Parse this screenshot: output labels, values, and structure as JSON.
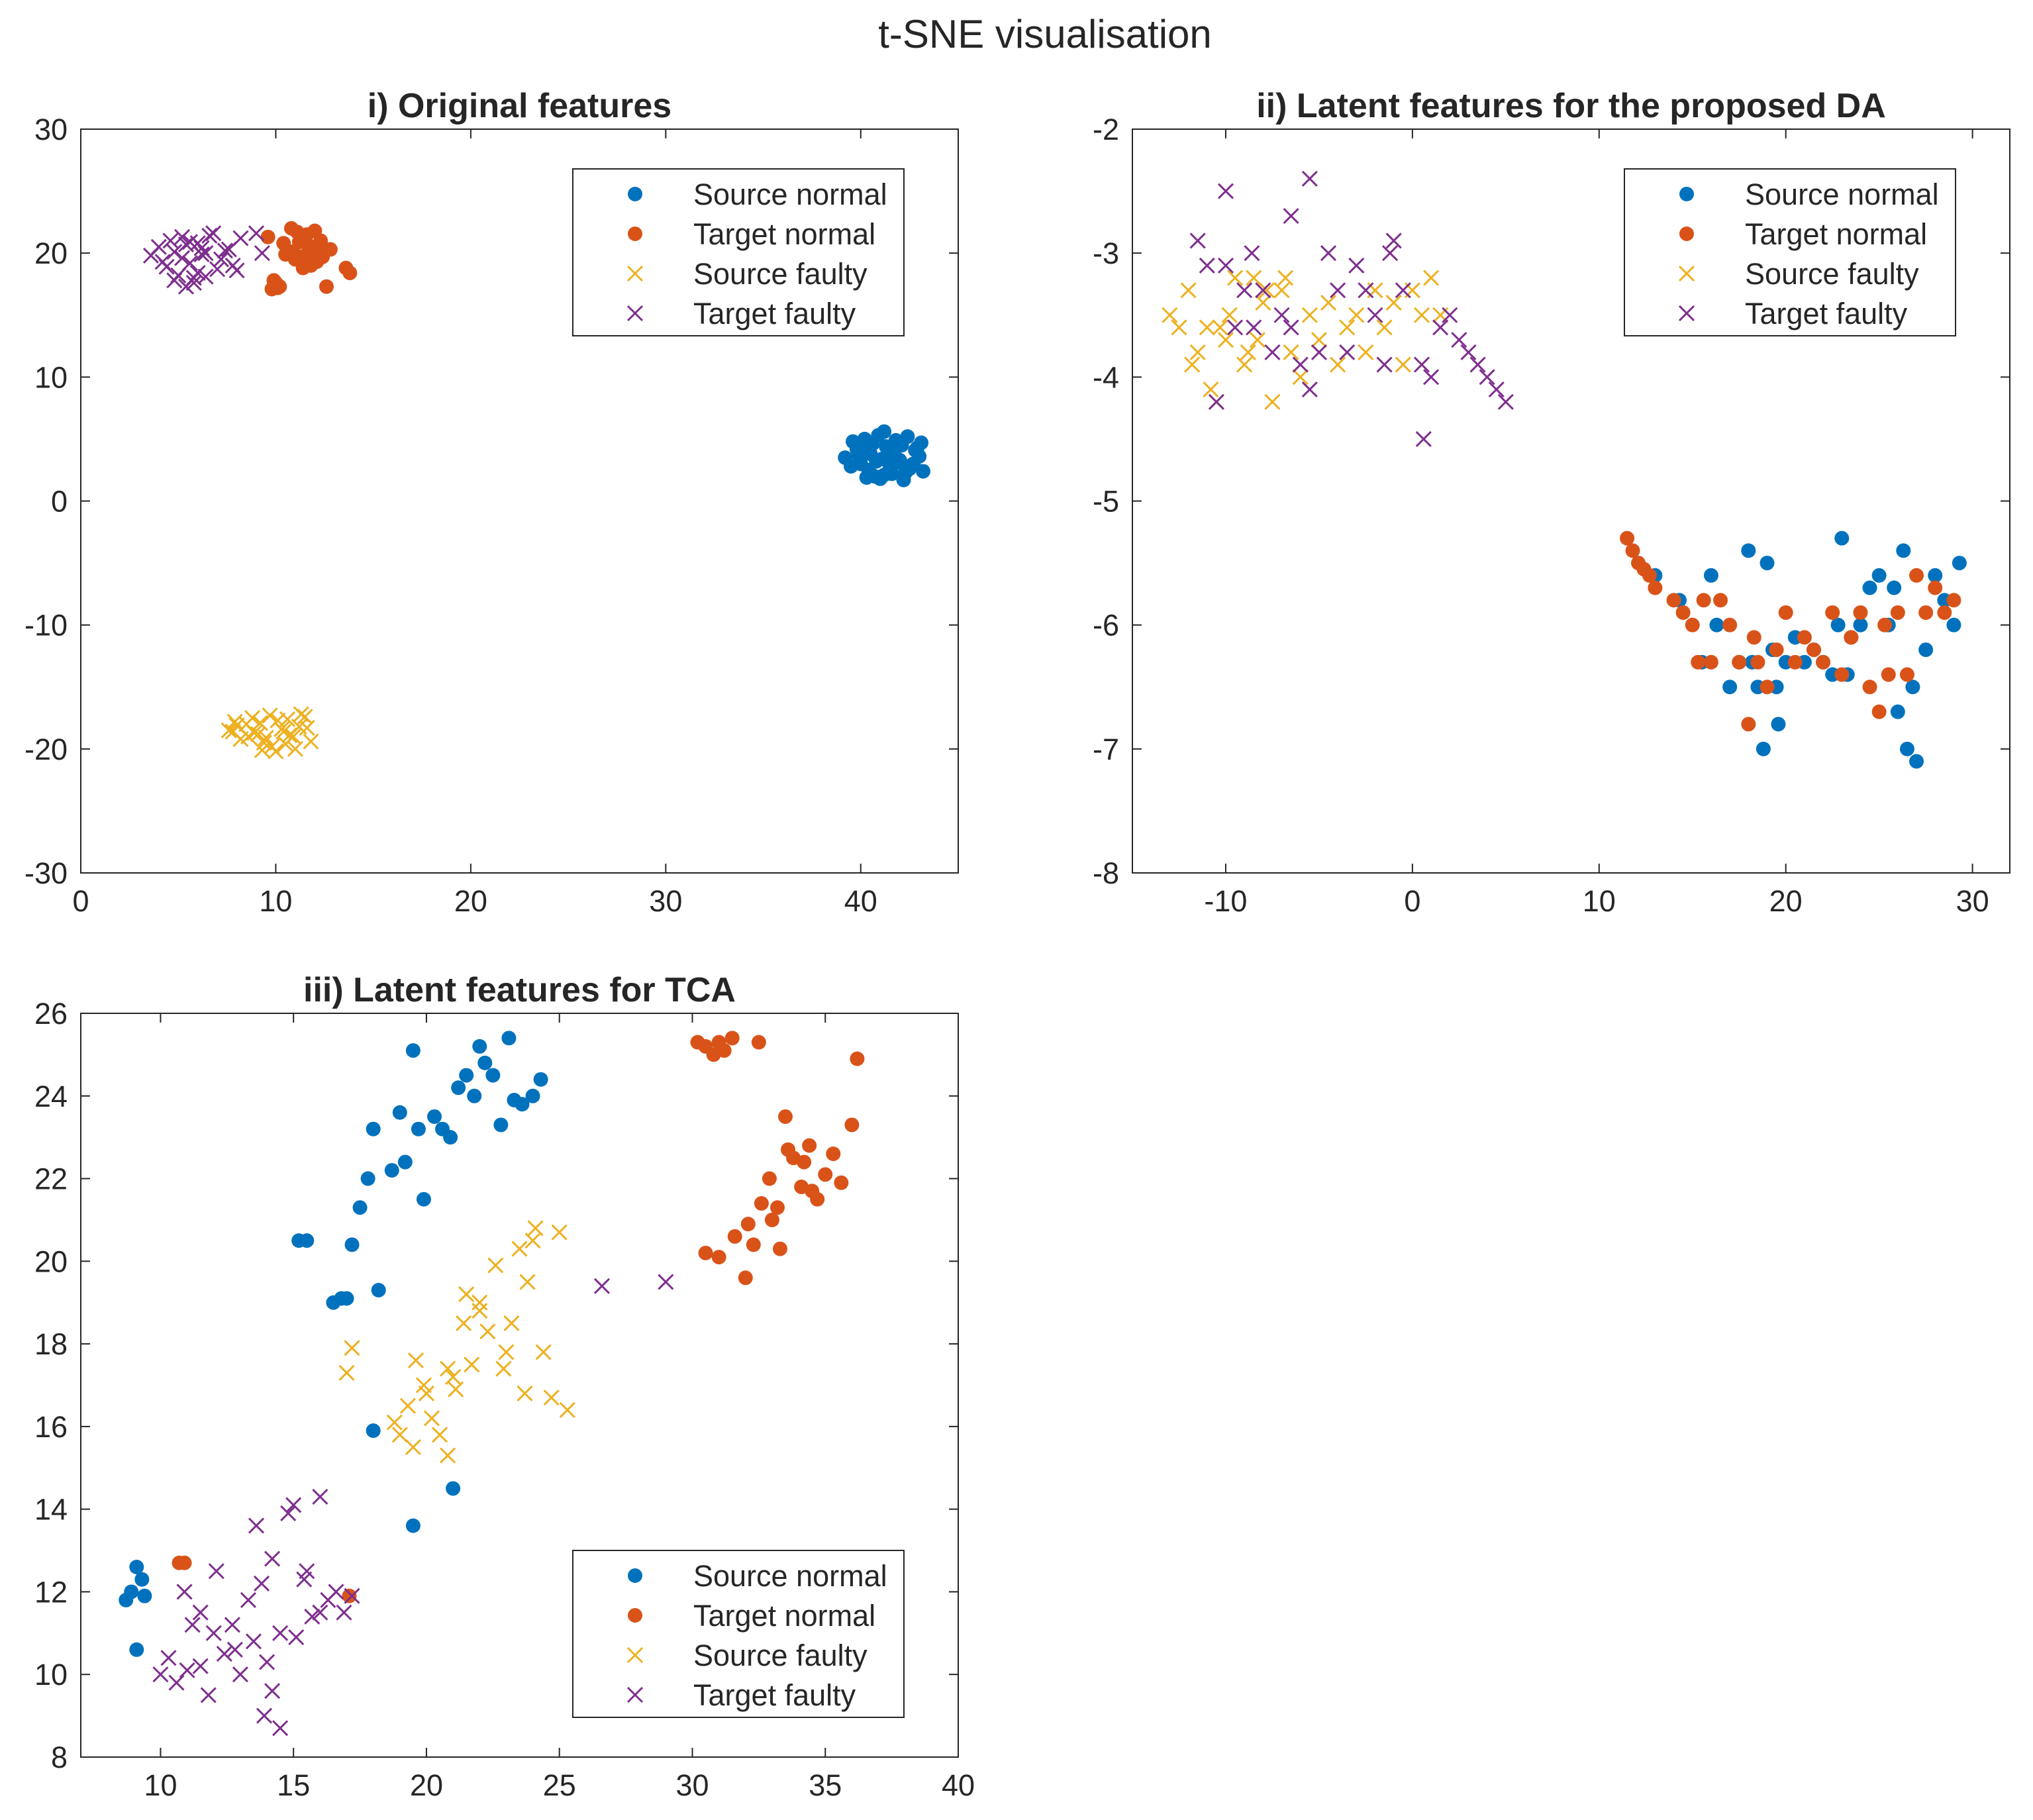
{
  "figure_title": "t-SNE visualisation",
  "colors": {
    "source_normal": "#0072BD",
    "target_normal": "#D95319",
    "source_faulty": "#EDB120",
    "target_faulty": "#7E2F8E",
    "axis": "#262626"
  },
  "chart_data": [
    {
      "type": "scatter",
      "title": "i) Original features",
      "xlabel": "",
      "ylabel": "",
      "xlim": [
        0,
        45
      ],
      "ylim": [
        -30,
        30
      ],
      "xticks": [
        0,
        10,
        20,
        30,
        40
      ],
      "yticks": [
        -30,
        -20,
        -10,
        0,
        10,
        20,
        30
      ],
      "legend_position": "top-right",
      "series": [
        {
          "name": "Source normal",
          "marker": "dot",
          "color": "#0072BD",
          "x": [
            39.2,
            39.5,
            39.8,
            40.0,
            40.2,
            40.4,
            40.6,
            40.8,
            41.0,
            41.2,
            41.4,
            41.6,
            41.8,
            42.0,
            42.2,
            42.4,
            42.6,
            42.8,
            43.0,
            43.2,
            39.6,
            40.1,
            40.7,
            41.3,
            41.9,
            42.5,
            43.1,
            40.3,
            41.1,
            41.7,
            42.3,
            40.9,
            41.5,
            42.1,
            39.9,
            42.7,
            41.2,
            40.5,
            41.8,
            42.9
          ],
          "y": [
            3.5,
            2.8,
            4.2,
            3.0,
            5.0,
            2.5,
            4.6,
            3.2,
            1.8,
            5.6,
            3.8,
            2.2,
            4.9,
            3.3,
            1.7,
            5.2,
            2.9,
            4.1,
            3.6,
            2.4,
            4.8,
            3.9,
            2.0,
            4.4,
            3.1,
            2.6,
            4.7,
            1.9,
            3.4,
            4.0,
            2.3,
            5.3,
            2.7,
            4.5,
            3.7,
            3.0,
            2.1,
            3.8,
            3.5,
            4.3
          ]
        },
        {
          "name": "Target normal",
          "marker": "dot",
          "color": "#D95319",
          "x": [
            9.6,
            9.8,
            10.0,
            10.2,
            10.4,
            10.6,
            10.8,
            11.0,
            11.2,
            11.4,
            11.6,
            11.8,
            12.0,
            12.2,
            12.4,
            12.6,
            10.9,
            11.3,
            11.7,
            12.1,
            10.5,
            11.1,
            11.5,
            11.9,
            12.3,
            9.9,
            10.1,
            13.6,
            13.8,
            12.8
          ],
          "y": [
            21.3,
            17.1,
            17.6,
            17.3,
            20.8,
            20.2,
            22.0,
            19.5,
            20.9,
            18.8,
            21.5,
            19.0,
            21.8,
            20.4,
            19.7,
            17.3,
            20.1,
            21.2,
            20.6,
            19.3,
            19.9,
            21.7,
            19.8,
            20.3,
            21.0,
            17.8,
            17.2,
            18.8,
            18.4,
            20.3
          ]
        },
        {
          "name": "Source faulty",
          "marker": "x",
          "color": "#EDB120",
          "x": [
            7.6,
            7.9,
            8.2,
            8.5,
            8.8,
            9.1,
            9.4,
            9.7,
            10.0,
            10.3,
            10.6,
            10.9,
            11.2,
            11.5,
            11.8,
            8.0,
            8.6,
            9.2,
            9.8,
            10.4,
            11.0,
            11.6,
            9.5,
            10.1,
            10.7,
            8.9,
            9.3,
            10.5,
            11.3,
            7.8
          ],
          "y": [
            -18.5,
            -17.8,
            -19.2,
            -18.0,
            -17.5,
            -18.8,
            -19.5,
            -17.3,
            -20.2,
            -18.4,
            -17.6,
            -19.0,
            -18.2,
            -17.4,
            -19.4,
            -18.1,
            -19.0,
            -17.9,
            -19.8,
            -18.6,
            -20.0,
            -18.3,
            -19.1,
            -17.7,
            -18.9,
            -18.7,
            -20.1,
            -19.6,
            -17.2,
            -18.6
          ]
        },
        {
          "name": "Target faulty",
          "marker": "x",
          "color": "#7E2F8E",
          "x": [
            3.6,
            4.0,
            4.4,
            4.8,
            5.2,
            5.6,
            6.0,
            6.4,
            6.8,
            7.2,
            7.6,
            8.0,
            4.2,
            4.6,
            5.0,
            5.4,
            5.8,
            6.2,
            6.6,
            7.0,
            7.4,
            7.8,
            8.2,
            4.8,
            5.2,
            5.6,
            6.0,
            6.4,
            9.0,
            9.3,
            5.4,
            5.8,
            6.2
          ],
          "y": [
            19.8,
            20.5,
            18.9,
            20.1,
            21.3,
            19.2,
            20.8,
            18.1,
            21.6,
            19.5,
            20.3,
            18.6,
            19.3,
            21.0,
            18.2,
            20.7,
            17.6,
            19.9,
            21.4,
            18.7,
            20.2,
            19.0,
            21.2,
            17.8,
            19.6,
            20.9,
            18.4,
            20.0,
            21.6,
            20.0,
            17.3,
            18.0,
            20.4
          ]
        }
      ]
    },
    {
      "type": "scatter",
      "title": "ii) Latent features for the proposed DA",
      "xlabel": "",
      "ylabel": "",
      "xlim": [
        -15,
        32
      ],
      "ylim": [
        -8,
        -2
      ],
      "xticks": [
        -10,
        0,
        10,
        20,
        30
      ],
      "yticks": [
        -8,
        -7,
        -6,
        -5,
        -4,
        -3,
        -2
      ],
      "legend_position": "top-right",
      "series": [
        {
          "name": "Source normal",
          "marker": "dot",
          "color": "#0072BD",
          "x": [
            13.0,
            14.3,
            15.5,
            16.0,
            16.3,
            17.0,
            17.5,
            18.0,
            18.2,
            18.5,
            18.8,
            19.0,
            19.3,
            19.6,
            20.0,
            20.5,
            21.0,
            21.5,
            22.0,
            22.5,
            23.0,
            23.3,
            23.5,
            24.0,
            24.5,
            25.0,
            25.5,
            26.0,
            26.3,
            26.5,
            27.0,
            27.5,
            28.0,
            28.5,
            29.0,
            29.3,
            25.8,
            26.8,
            19.5,
            22.8
          ],
          "y": [
            -5.6,
            -5.8,
            -6.3,
            -5.6,
            -6.0,
            -6.5,
            -6.3,
            -5.4,
            -6.3,
            -6.5,
            -7.0,
            -5.5,
            -6.2,
            -6.8,
            -6.3,
            -6.1,
            -6.3,
            -6.2,
            -6.3,
            -6.4,
            -5.3,
            -6.4,
            -6.1,
            -6.0,
            -5.7,
            -5.6,
            -6.0,
            -6.7,
            -5.4,
            -7.0,
            -7.1,
            -6.2,
            -5.6,
            -5.8,
            -6.0,
            -5.5,
            -5.7,
            -6.5,
            -6.5,
            -6.0
          ]
        },
        {
          "name": "Target normal",
          "marker": "dot",
          "color": "#D95319",
          "x": [
            11.5,
            11.8,
            12.1,
            12.4,
            12.7,
            13.0,
            14.0,
            14.5,
            15.0,
            15.3,
            15.6,
            16.0,
            16.5,
            17.0,
            17.5,
            18.0,
            18.5,
            19.0,
            19.5,
            20.0,
            20.5,
            21.0,
            21.5,
            22.0,
            22.5,
            23.0,
            23.5,
            24.0,
            24.5,
            25.0,
            25.5,
            26.0,
            26.5,
            27.0,
            27.5,
            28.0,
            28.5,
            29.0,
            18.3,
            25.3
          ],
          "y": [
            -5.3,
            -5.4,
            -5.5,
            -5.55,
            -5.6,
            -5.7,
            -5.8,
            -5.9,
            -6.0,
            -6.3,
            -5.8,
            -6.3,
            -5.8,
            -6.0,
            -6.3,
            -6.8,
            -6.3,
            -6.5,
            -6.2,
            -5.9,
            -6.3,
            -6.1,
            -6.2,
            -6.3,
            -5.9,
            -6.4,
            -6.1,
            -5.9,
            -6.5,
            -6.7,
            -6.4,
            -5.9,
            -6.4,
            -5.6,
            -5.9,
            -5.7,
            -5.9,
            -5.8,
            -6.1,
            -6.0
          ]
        },
        {
          "name": "Source faulty",
          "marker": "x",
          "color": "#EDB120",
          "x": [
            -13.0,
            -12.5,
            -12.0,
            -11.5,
            -11.0,
            -10.5,
            -10.0,
            -9.5,
            -9.0,
            -8.5,
            -8.0,
            -7.5,
            -7.0,
            -6.5,
            -6.0,
            -5.5,
            -5.0,
            -4.5,
            -4.0,
            -3.5,
            -3.0,
            -2.5,
            -2.0,
            -1.5,
            -1.0,
            -0.5,
            0.0,
            0.5,
            1.0,
            1.5,
            -10.8,
            -9.8,
            -8.8,
            -7.8,
            -10.3,
            -11.8,
            -6.8,
            -8.3
          ],
          "y": [
            -3.5,
            -3.6,
            -3.3,
            -3.8,
            -3.6,
            -4.2,
            -3.7,
            -3.2,
            -3.9,
            -3.2,
            -3.4,
            -4.2,
            -3.3,
            -3.8,
            -4.0,
            -3.5,
            -3.7,
            -3.4,
            -3.9,
            -3.6,
            -3.5,
            -3.8,
            -3.3,
            -3.6,
            -3.4,
            -3.9,
            -3.3,
            -3.5,
            -3.2,
            -3.5,
            -4.1,
            -3.5,
            -3.8,
            -3.3,
            -3.6,
            -3.9,
            -3.2,
            -3.7
          ]
        },
        {
          "name": "Target faulty",
          "marker": "x",
          "color": "#7E2F8E",
          "x": [
            -11.5,
            -11.0,
            -10.5,
            -10.0,
            -9.5,
            -9.0,
            -8.5,
            -8.0,
            -7.5,
            -7.0,
            -6.5,
            -6.0,
            -5.5,
            -5.0,
            -4.5,
            -4.0,
            -3.5,
            -3.0,
            -2.5,
            -2.0,
            -1.5,
            -1.0,
            -0.5,
            0.5,
            1.0,
            1.5,
            2.0,
            2.5,
            3.0,
            3.5,
            4.0,
            4.5,
            5.0,
            -5.5,
            -10.0,
            -6.5,
            -1.2,
            0.6,
            -8.6
          ],
          "y": [
            -2.9,
            -3.1,
            -4.2,
            -3.1,
            -3.6,
            -3.3,
            -3.6,
            -3.3,
            -3.8,
            -3.5,
            -2.7,
            -3.9,
            -4.1,
            -3.8,
            -3.0,
            -3.3,
            -3.8,
            -3.1,
            -3.3,
            -3.5,
            -3.9,
            -2.9,
            -3.3,
            -3.9,
            -4.0,
            -3.6,
            -3.5,
            -3.7,
            -3.8,
            -3.9,
            -4.0,
            -4.1,
            -4.2,
            -2.4,
            -2.5,
            -3.6,
            -3.0,
            -4.5,
            -3.0
          ]
        }
      ]
    },
    {
      "type": "scatter",
      "title": "iii) Latent features for TCA",
      "xlabel": "",
      "ylabel": "",
      "xlim": [
        7,
        40
      ],
      "ylim": [
        8,
        26
      ],
      "xticks": [
        10,
        15,
        20,
        25,
        30,
        35,
        40
      ],
      "yticks": [
        8,
        10,
        12,
        14,
        16,
        18,
        20,
        22,
        24,
        26
      ],
      "legend_position": "bottom-right",
      "series": [
        {
          "name": "Source normal",
          "marker": "dot",
          "color": "#0072BD",
          "x": [
            8.7,
            8.9,
            9.1,
            9.3,
            9.4,
            9.1,
            15.2,
            15.5,
            16.5,
            16.8,
            17.2,
            17.5,
            17.8,
            18.0,
            18.2,
            18.7,
            19.0,
            19.2,
            19.5,
            19.7,
            19.9,
            20.3,
            20.6,
            20.9,
            21.2,
            21.5,
            21.8,
            22.0,
            22.2,
            22.5,
            22.8,
            23.1,
            23.3,
            23.6,
            24.0,
            24.3,
            17.0,
            18.0,
            19.5,
            21.0
          ],
          "y": [
            11.8,
            12.0,
            12.6,
            12.3,
            11.9,
            10.6,
            20.5,
            20.5,
            19.0,
            19.1,
            20.4,
            21.3,
            22.0,
            23.2,
            19.3,
            22.2,
            23.6,
            22.4,
            25.1,
            23.2,
            21.5,
            23.5,
            23.2,
            23.0,
            24.2,
            24.5,
            24.0,
            25.2,
            24.8,
            24.5,
            23.3,
            25.4,
            23.9,
            23.8,
            24.0,
            24.4,
            19.1,
            15.9,
            13.6,
            14.5
          ]
        },
        {
          "name": "Target normal",
          "marker": "dot",
          "color": "#D95319",
          "x": [
            10.7,
            10.9,
            17.1,
            30.2,
            30.5,
            30.8,
            31.0,
            31.2,
            31.5,
            32.5,
            30.5,
            31.0,
            31.6,
            32.0,
            32.3,
            32.6,
            32.9,
            33.2,
            33.5,
            33.8,
            34.1,
            34.4,
            34.7,
            35.0,
            35.3,
            35.6,
            36.0,
            36.2,
            32.1,
            33.0,
            33.6,
            34.5,
            33.3,
            34.2
          ],
          "y": [
            12.7,
            12.7,
            11.9,
            25.3,
            25.2,
            25.0,
            25.3,
            25.1,
            25.4,
            25.3,
            20.2,
            20.1,
            20.6,
            19.6,
            20.4,
            21.4,
            22.0,
            21.3,
            23.5,
            22.5,
            21.8,
            22.8,
            21.5,
            22.1,
            22.6,
            21.9,
            23.3,
            24.9,
            20.9,
            21.0,
            22.7,
            21.7,
            20.3,
            22.4
          ]
        },
        {
          "name": "Source faulty",
          "marker": "x",
          "color": "#EDB120",
          "x": [
            17.0,
            17.2,
            18.8,
            19.0,
            19.3,
            19.6,
            19.9,
            20.2,
            20.5,
            20.8,
            21.1,
            21.4,
            21.7,
            22.0,
            22.3,
            22.6,
            22.9,
            23.2,
            23.5,
            23.8,
            24.1,
            24.4,
            24.7,
            25.0,
            25.3,
            20.0,
            21.0,
            22.0,
            23.0,
            24.0,
            19.5,
            21.5,
            23.7,
            20.8
          ],
          "y": [
            17.3,
            17.9,
            16.1,
            15.8,
            16.5,
            17.6,
            17.0,
            16.2,
            15.8,
            17.4,
            16.9,
            18.5,
            17.5,
            19.0,
            18.3,
            19.9,
            17.4,
            18.5,
            20.3,
            19.5,
            20.8,
            17.8,
            16.7,
            20.7,
            16.4,
            16.8,
            17.2,
            18.8,
            17.8,
            20.5,
            15.5,
            19.2,
            16.8,
            15.3
          ]
        },
        {
          "name": "Target faulty",
          "marker": "x",
          "color": "#7E2F8E",
          "x": [
            10.0,
            10.3,
            10.6,
            10.9,
            11.2,
            11.5,
            11.8,
            12.1,
            12.4,
            12.7,
            13.0,
            13.3,
            13.6,
            13.9,
            14.2,
            14.5,
            14.8,
            15.1,
            15.4,
            15.7,
            16.0,
            16.3,
            16.6,
            16.9,
            17.2,
            11.0,
            12.0,
            13.5,
            14.0,
            14.5,
            15.0,
            16.0,
            13.8,
            26.6,
            29.0,
            11.5,
            12.8,
            14.2,
            15.5
          ],
          "y": [
            10.0,
            10.4,
            9.8,
            12.0,
            11.2,
            10.2,
            9.5,
            12.5,
            10.5,
            11.2,
            10.0,
            11.8,
            13.6,
            9.0,
            12.8,
            11.0,
            13.9,
            10.9,
            12.3,
            11.4,
            14.3,
            11.8,
            12.0,
            11.5,
            11.9,
            10.1,
            11.0,
            10.8,
            10.3,
            8.7,
            14.1,
            11.5,
            12.2,
            19.4,
            19.5,
            11.5,
            10.6,
            9.6,
            12.5
          ]
        }
      ]
    }
  ]
}
